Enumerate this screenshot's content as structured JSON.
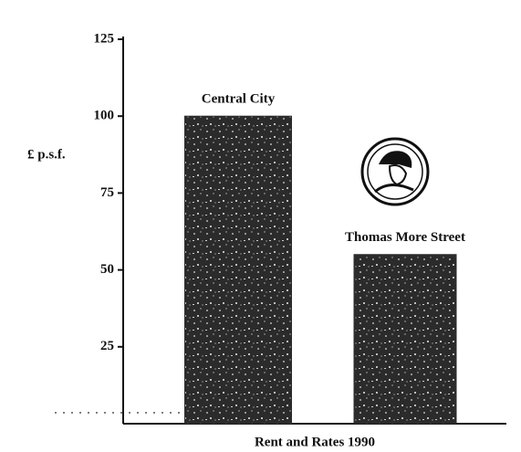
{
  "chart_data": {
    "type": "bar",
    "y_label": "£ p.s.f.",
    "x_label": "Rent and Rates 1990",
    "categories": [
      "Central City",
      "Thomas More Street"
    ],
    "values": [
      100,
      55
    ],
    "color": "#2b2b2b",
    "ylim": [
      0,
      125
    ],
    "yticks": [
      25,
      50,
      75,
      100,
      125
    ]
  }
}
